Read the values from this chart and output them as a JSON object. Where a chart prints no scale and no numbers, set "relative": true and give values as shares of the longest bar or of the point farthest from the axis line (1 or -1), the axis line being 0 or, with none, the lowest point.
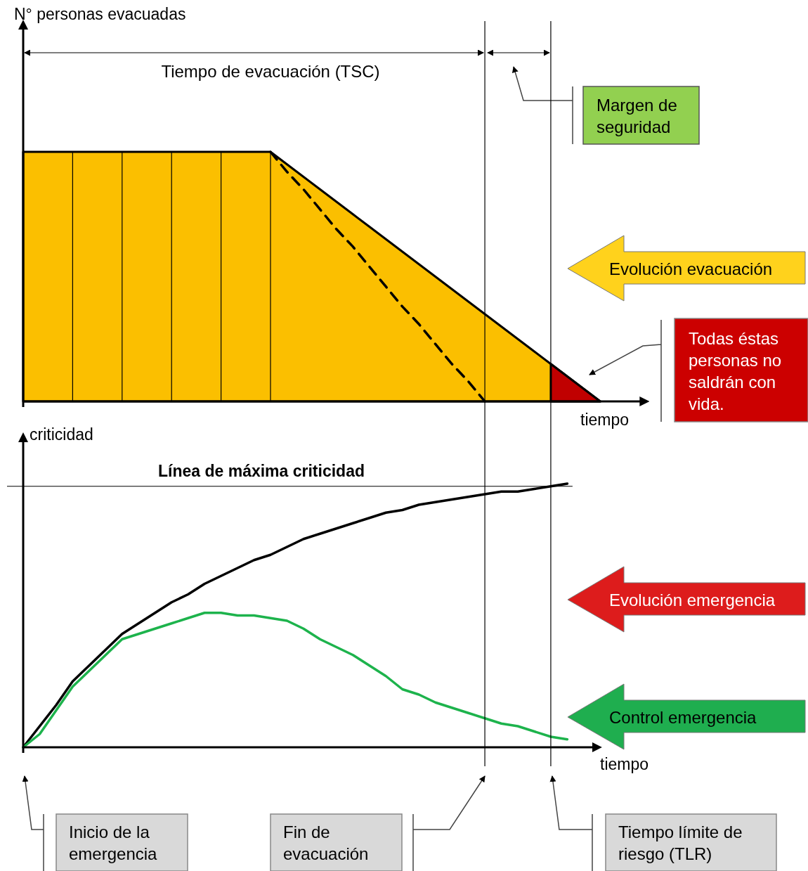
{
  "chart_data": [
    {
      "type": "area",
      "relative": true,
      "grid": "x",
      "ylabel": "N° personas evacuadas",
      "xlabel": "tiempo",
      "categories": [
        null,
        null,
        null,
        null,
        null,
        null,
        null,
        null,
        null,
        null,
        null,
        null,
        null,
        null,
        null,
        null,
        null,
        null,
        null,
        null,
        null,
        null,
        null,
        null,
        null,
        null,
        null,
        null,
        null,
        null,
        null,
        null,
        null,
        null,
        null,
        null
      ],
      "series": [
        {
          "type": "area",
          "color": "#fbbf00",
          "values": [
            1,
            1,
            1,
            1,
            1,
            1,
            1,
            1,
            1,
            1,
            1,
            1,
            1,
            1,
            1,
            1,
            0.95,
            0.9,
            0.85,
            0.8,
            0.75,
            0.7,
            0.65,
            0.6,
            0.55,
            0.5,
            0.45,
            0.4,
            0.35,
            0.3,
            0.25,
            0.2,
            0.15,
            0.1,
            0.05,
            0
          ]
        },
        {
          "type": "line",
          "color": "#000000",
          "line_style": "dashed",
          "values": [
            null,
            null,
            null,
            null,
            null,
            null,
            null,
            null,
            null,
            null,
            null,
            null,
            null,
            null,
            null,
            1,
            0.92,
            0.85,
            0.77,
            0.69,
            0.62,
            0.54,
            0.46,
            0.38,
            0.31,
            0.23,
            0.15,
            0.08,
            0,
            null,
            null,
            null,
            null,
            null,
            null,
            null
          ]
        },
        {
          "type": "area",
          "color": "#c00000",
          "values": [
            null,
            null,
            null,
            null,
            null,
            null,
            null,
            null,
            null,
            null,
            null,
            null,
            null,
            null,
            null,
            null,
            null,
            null,
            null,
            null,
            null,
            null,
            null,
            null,
            null,
            null,
            null,
            null,
            null,
            null,
            null,
            null,
            0.15,
            0.1,
            0.05,
            0
          ]
        }
      ],
      "annotations": [
        "Tiempo de evacuación (TSC)",
        "Margen de seguridad",
        "Evolución evacuación",
        "Todas éstas personas no saldrán con vida."
      ]
    },
    {
      "type": "line",
      "relative": true,
      "ylabel": "criticidad",
      "xlabel": "tiempo",
      "categories": [
        null,
        null,
        null,
        null,
        null,
        null,
        null,
        null,
        null,
        null,
        null,
        null,
        null,
        null,
        null,
        null,
        null,
        null,
        null,
        null,
        null,
        null,
        null,
        null,
        null,
        null,
        null,
        null,
        null,
        null,
        null,
        null,
        null,
        null,
        null
      ],
      "series": [
        {
          "color": "#000000",
          "values": [
            0,
            0.08,
            0.16,
            0.25,
            0.31,
            0.37,
            0.43,
            0.47,
            0.51,
            0.55,
            0.58,
            0.62,
            0.65,
            0.68,
            0.71,
            0.73,
            0.76,
            0.79,
            0.81,
            0.83,
            0.85,
            0.87,
            0.89,
            0.9,
            0.92,
            0.93,
            0.94,
            0.95,
            0.96,
            0.97,
            0.97,
            0.98,
            0.99,
            1,
            null
          ]
        },
        {
          "color": "#1db34c",
          "values": [
            0,
            0.05,
            0.14,
            0.23,
            0.29,
            0.35,
            0.41,
            0.43,
            0.45,
            0.47,
            0.49,
            0.51,
            0.51,
            0.5,
            0.5,
            0.49,
            0.48,
            0.45,
            0.41,
            0.38,
            0.35,
            0.31,
            0.27,
            0.22,
            0.2,
            0.17,
            0.15,
            0.13,
            0.11,
            0.09,
            0.08,
            0.06,
            0.04,
            0.03,
            null
          ]
        }
      ],
      "ref_lines": [
        {
          "axis": "y",
          "value": 0.99,
          "label": "Línea de máxima criticidad"
        }
      ],
      "annotations": [
        "Evolución emergencia",
        "Control emergencia",
        "Inicio de la emergencia",
        "Fin de evacuación",
        "Tiempo límite de riesgo (TLR)"
      ]
    }
  ]
}
